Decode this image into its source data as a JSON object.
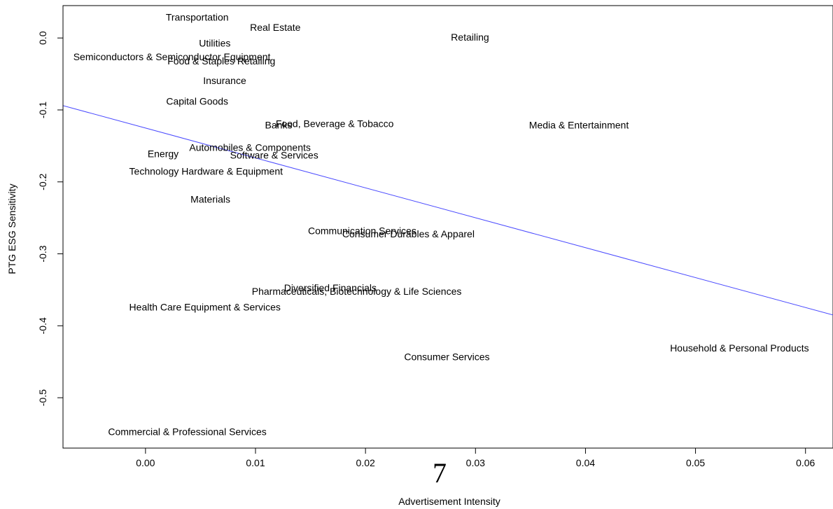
{
  "chart_data": {
    "type": "scatter",
    "title": "",
    "xlabel": "Advertisement Intensity",
    "ylabel": "PTG ESG Sensitivity",
    "xlim": [
      -0.0075,
      0.0625
    ],
    "ylim": [
      -0.57,
      0.045
    ],
    "x_ticks": [
      0.0,
      0.01,
      0.02,
      0.03,
      0.04,
      0.05,
      0.06
    ],
    "x_tick_labels": [
      "0.00",
      "0.01",
      "0.02",
      "0.03",
      "0.04",
      "0.05",
      "0.06"
    ],
    "y_ticks": [
      0.0,
      -0.1,
      -0.2,
      -0.3,
      -0.4,
      -0.5
    ],
    "y_tick_labels": [
      "0.0",
      "-0.1",
      "-0.2",
      "-0.3",
      "-0.4",
      "-0.5"
    ],
    "grid": false,
    "points": [
      {
        "label": "Transportation",
        "x": 0.0047,
        "y": 0.029
      },
      {
        "label": "Real Estate",
        "x": 0.0118,
        "y": 0.015
      },
      {
        "label": "Retailing",
        "x": 0.0295,
        "y": 0.001
      },
      {
        "label": "Utilities",
        "x": 0.0063,
        "y": -0.007
      },
      {
        "label": "Semiconductors & Semiconductor Equipment",
        "x": 0.0024,
        "y": -0.026
      },
      {
        "label": "Food & Staples Retailing",
        "x": 0.0069,
        "y": -0.032
      },
      {
        "label": "Insurance",
        "x": 0.0072,
        "y": -0.059
      },
      {
        "label": "Capital Goods",
        "x": 0.0047,
        "y": -0.088
      },
      {
        "label": "Food, Beverage & Tobacco",
        "x": 0.0172,
        "y": -0.119
      },
      {
        "label": "Banks",
        "x": 0.0121,
        "y": -0.121
      },
      {
        "label": "Media & Entertainment",
        "x": 0.0394,
        "y": -0.121
      },
      {
        "label": "Automobiles & Components",
        "x": 0.0095,
        "y": -0.152
      },
      {
        "label": "Energy",
        "x": 0.0016,
        "y": -0.161
      },
      {
        "label": "Software & Services",
        "x": 0.0117,
        "y": -0.163
      },
      {
        "label": "Technology Hardware & Equipment",
        "x": 0.0055,
        "y": -0.185
      },
      {
        "label": "Materials",
        "x": 0.0059,
        "y": -0.224
      },
      {
        "label": "Communication Services",
        "x": 0.0197,
        "y": -0.268
      },
      {
        "label": "Consumer Durables & Apparel",
        "x": 0.0239,
        "y": -0.272
      },
      {
        "label": "Diversified Financials",
        "x": 0.0168,
        "y": -0.347
      },
      {
        "label": "Pharmaceuticals, Biotechnology & Life Sciences",
        "x": 0.0192,
        "y": -0.352
      },
      {
        "label": "Health Care Equipment & Services",
        "x": 0.0054,
        "y": -0.374
      },
      {
        "label": "Household & Personal Products",
        "x": 0.054,
        "y": -0.431
      },
      {
        "label": "Consumer Services",
        "x": 0.0274,
        "y": -0.443
      },
      {
        "label": "Commercial & Professional Services",
        "x": 0.0038,
        "y": -0.547
      }
    ],
    "fit_line": {
      "color": "#4a4aff",
      "x": [
        -0.0075,
        0.0625
      ],
      "y": [
        -0.094,
        -0.385
      ]
    }
  },
  "page_number": "7"
}
